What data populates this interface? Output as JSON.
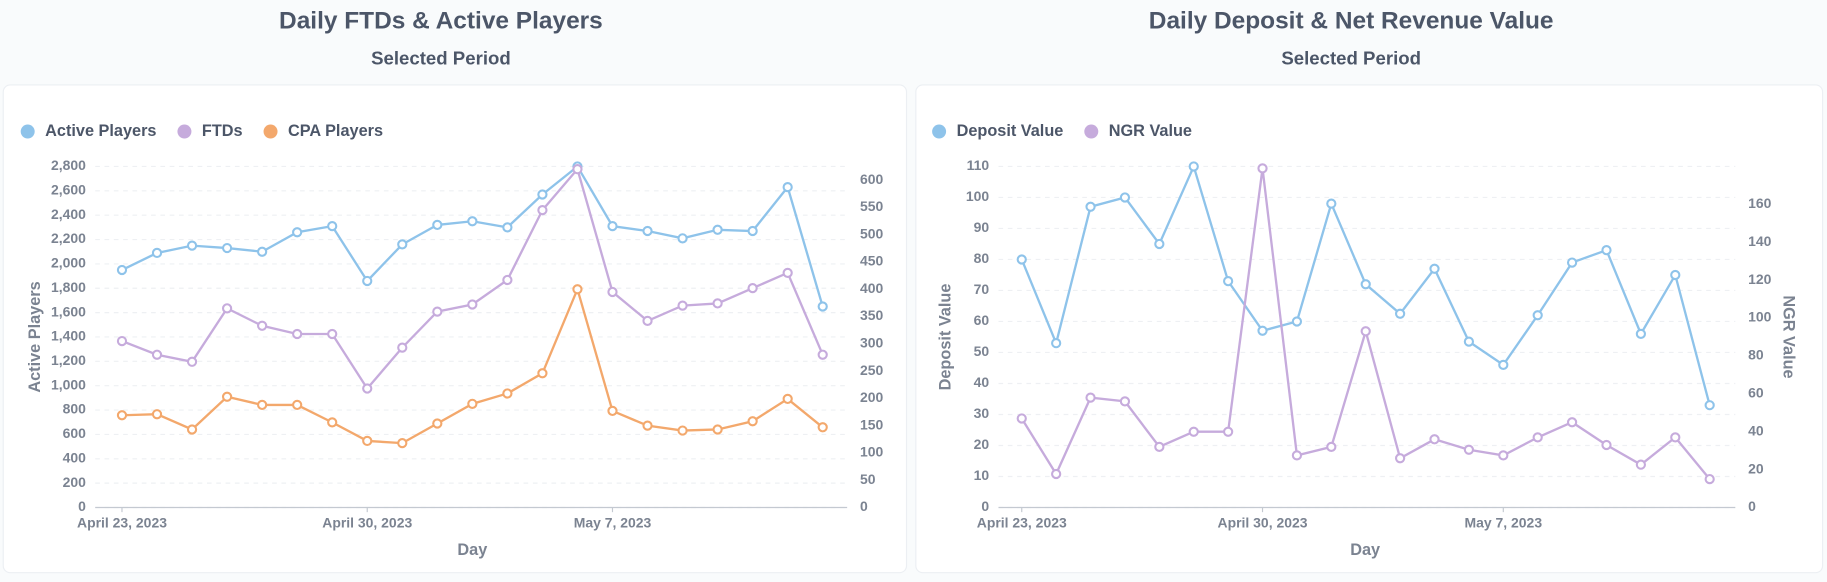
{
  "chart_data": [
    {
      "type": "line",
      "title": "Daily FTDs & Active Players",
      "subtitle": "Selected Period",
      "x": [
        "2023-04-23",
        "2023-04-24",
        "2023-04-25",
        "2023-04-26",
        "2023-04-27",
        "2023-04-28",
        "2023-04-29",
        "2023-04-30",
        "2023-05-01",
        "2023-05-02",
        "2023-05-03",
        "2023-05-04",
        "2023-05-05",
        "2023-05-06",
        "2023-05-07",
        "2023-05-08",
        "2023-05-09",
        "2023-05-10",
        "2023-05-11",
        "2023-05-12",
        "2023-05-13"
      ],
      "xticks": [
        {
          "value": "2023-04-23",
          "label": "April 23, 2023"
        },
        {
          "value": "2023-04-30",
          "label": "April 30, 2023"
        },
        {
          "value": "2023-05-07",
          "label": "May 7, 2023"
        }
      ],
      "xlabel": "Day",
      "ylabel": "Active Players",
      "ylim": [
        0,
        2800
      ],
      "yticks": [
        0,
        200,
        400,
        600,
        800,
        {
          "value": 1000,
          "label": "1,000"
        },
        {
          "value": 1200,
          "label": "1,200"
        },
        {
          "value": 1400,
          "label": "1,400"
        },
        {
          "value": 1600,
          "label": "1,600"
        },
        {
          "value": 1800,
          "label": "1,800"
        },
        {
          "value": 2000,
          "label": "2,000"
        },
        {
          "value": 2200,
          "label": "2,200"
        },
        {
          "value": 2400,
          "label": "2,400"
        },
        {
          "value": 2600,
          "label": "2,600"
        },
        {
          "value": 2800,
          "label": "2,800"
        }
      ],
      "y2lim": [
        0,
        625
      ],
      "y2ticks": [
        0,
        50,
        100,
        150,
        200,
        250,
        300,
        350,
        400,
        450,
        500,
        550,
        600
      ],
      "grid": true,
      "legend": "top-left",
      "series": [
        {
          "name": "Active Players",
          "color": "#8ec3ea",
          "axis": "y",
          "values": [
            1950,
            2090,
            2150,
            2130,
            2100,
            2260,
            2310,
            1860,
            2160,
            2320,
            2350,
            2300,
            2570,
            2800,
            2310,
            2270,
            2210,
            2280,
            2270,
            2630,
            1650
          ]
        },
        {
          "name": "FTDs",
          "color": "#c6abdc",
          "axis": "y2",
          "values": [
            305,
            280,
            267,
            365,
            333,
            318,
            318,
            218,
            293,
            359,
            372,
            417,
            545,
            620,
            395,
            342,
            370,
            374,
            402,
            430,
            280
          ]
        },
        {
          "name": "CPA Players",
          "color": "#f3a86c",
          "axis": "y2",
          "values": [
            169,
            171,
            143,
            203,
            188,
            188,
            156,
            122,
            118,
            154,
            190,
            209,
            246,
            400,
            177,
            150,
            141,
            143,
            158,
            199,
            147
          ]
        }
      ]
    },
    {
      "type": "line",
      "title": "Daily Deposit & Net Revenue Value",
      "subtitle": "Selected Period",
      "x": [
        "2023-04-23",
        "2023-04-24",
        "2023-04-25",
        "2023-04-26",
        "2023-04-27",
        "2023-04-28",
        "2023-04-29",
        "2023-04-30",
        "2023-05-01",
        "2023-05-02",
        "2023-05-03",
        "2023-05-04",
        "2023-05-05",
        "2023-05-06",
        "2023-05-07",
        "2023-05-08",
        "2023-05-09",
        "2023-05-10",
        "2023-05-11",
        "2023-05-12",
        "2023-05-13"
      ],
      "xticks": [
        {
          "value": "2023-04-23",
          "label": "April 23, 2023"
        },
        {
          "value": "2023-04-30",
          "label": "April 30, 2023"
        },
        {
          "value": "2023-05-07",
          "label": "May 7, 2023"
        }
      ],
      "xlabel": "Day",
      "ylabel": "Deposit Value",
      "y2label": "NGR Value",
      "ylim": [
        0,
        110
      ],
      "yticks": [
        0,
        10,
        20,
        30,
        40,
        50,
        60,
        70,
        80,
        90,
        100,
        110
      ],
      "y2lim": [
        0,
        180
      ],
      "y2ticks": [
        0,
        20,
        40,
        60,
        80,
        100,
        120,
        140,
        160
      ],
      "grid": true,
      "legend": "top-left",
      "series": [
        {
          "name": "Deposit Value",
          "color": "#8ec3ea",
          "axis": "y",
          "values": [
            80,
            53,
            97,
            100,
            85,
            110,
            73,
            57,
            60,
            98,
            72,
            62.5,
            77,
            53.5,
            46,
            62,
            79,
            83,
            56,
            75,
            33
          ]
        },
        {
          "name": "NGR Value",
          "color": "#c6abdc",
          "axis": "y2",
          "values": [
            47,
            17.7,
            58,
            56,
            32,
            40,
            40,
            179,
            27.5,
            32,
            93,
            26,
            36,
            30.5,
            27.5,
            37,
            45,
            33,
            22.6,
            37,
            15
          ]
        }
      ]
    }
  ]
}
